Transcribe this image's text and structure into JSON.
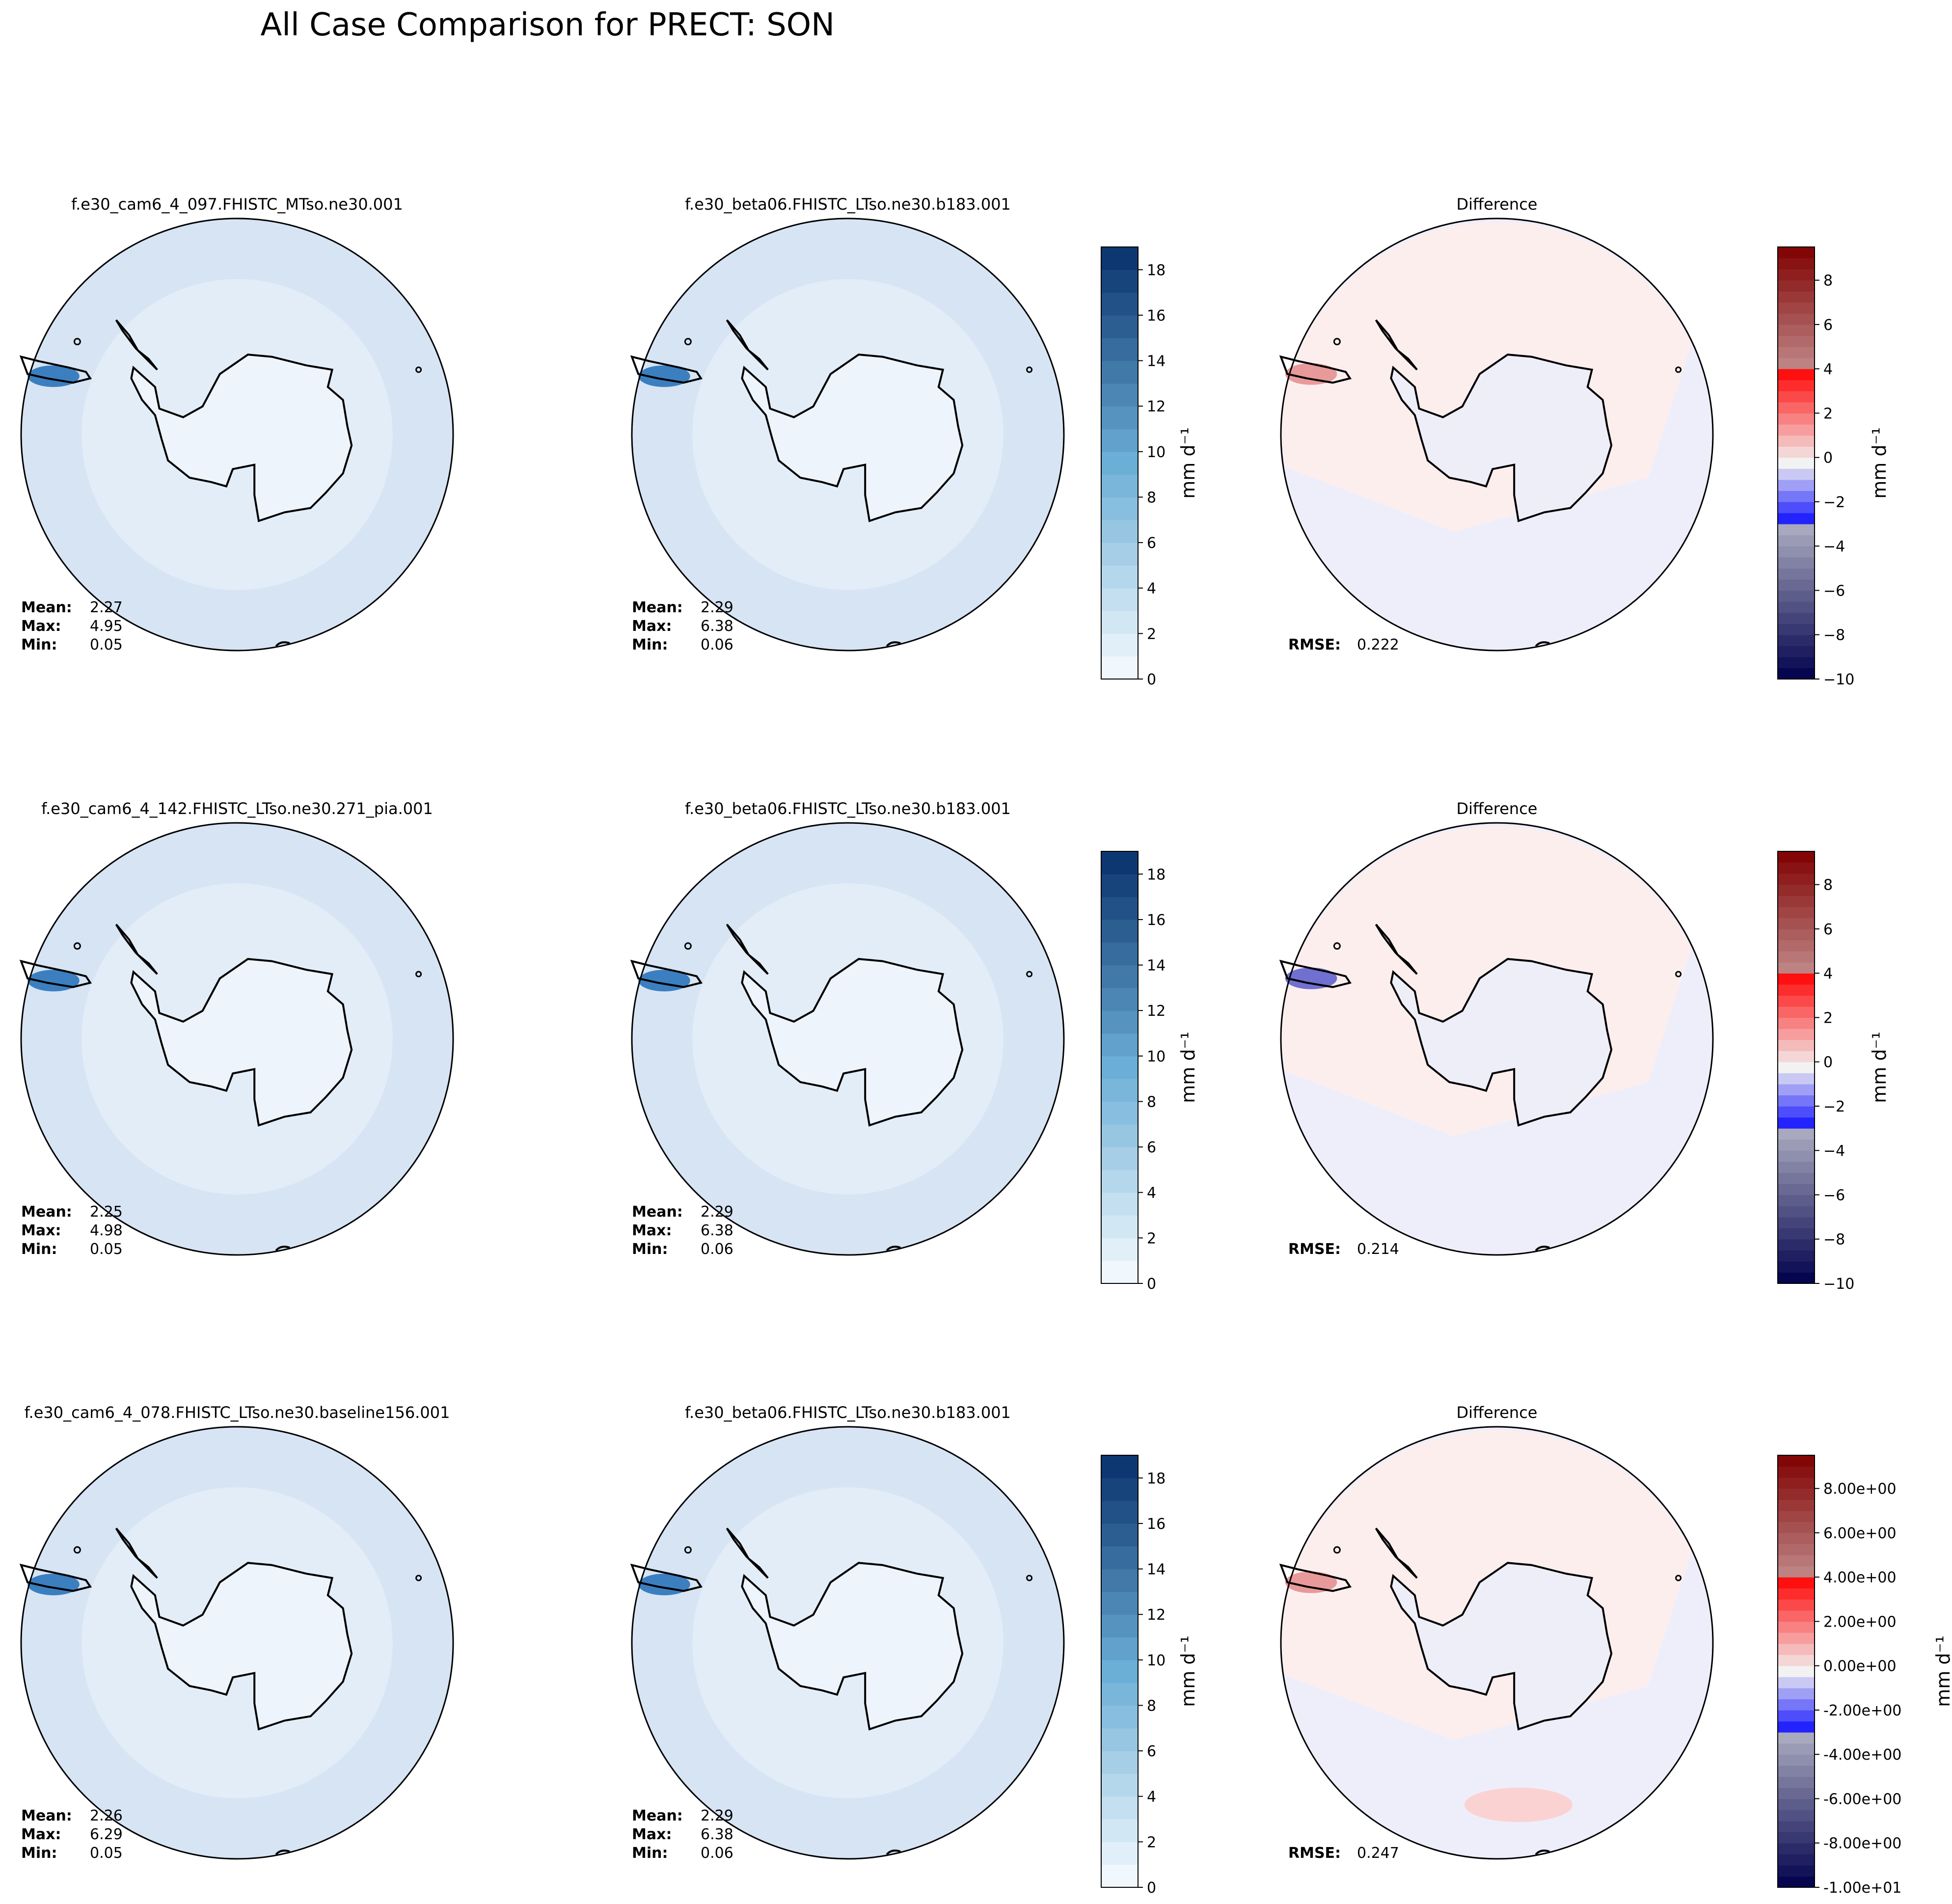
{
  "title": "All Case Comparison for PRECT: SON",
  "chart_data": {
    "type": "heatmap",
    "units_label": "mm d⁻¹",
    "precip_colorbar": {
      "ticks": [
        "0",
        "2",
        "4",
        "6",
        "8",
        "10",
        "12",
        "14",
        "16",
        "18"
      ],
      "range": [
        0,
        19
      ]
    },
    "diff_colorbar_plain": {
      "ticks": [
        "−10",
        "−8",
        "−6",
        "−4",
        "−2",
        "0",
        "2",
        "4",
        "6",
        "8"
      ],
      "range": [
        -10,
        9.5
      ]
    },
    "diff_colorbar_sci": {
      "ticks": [
        "-1.00e+01",
        "-8.00e+00",
        "-6.00e+00",
        "-4.00e+00",
        "-2.00e+00",
        "0.00e+00",
        "2.00e+00",
        "4.00e+00",
        "6.00e+00",
        "8.00e+00"
      ],
      "range": [
        -10,
        9.5
      ]
    },
    "stat_labels": {
      "mean": "Mean",
      "max": "Max",
      "min": "Min",
      "rmse": "RMSE"
    },
    "rows": [
      {
        "test": {
          "title": "f.e30_cam6_4_097.FHISTC_MTso.ne30.001",
          "mean": "2.27",
          "max": "4.95",
          "min": "0.05"
        },
        "baseline": {
          "title": "f.e30_beta06.FHISTC_LTso.ne30.b183.001",
          "mean": "2.29",
          "max": "6.38",
          "min": "0.06"
        },
        "diff": {
          "title": "Difference",
          "rmse": "0.222"
        }
      },
      {
        "test": {
          "title": "f.e30_cam6_4_142.FHISTC_LTso.ne30.271_pia.001",
          "mean": "2.25",
          "max": "4.98",
          "min": "0.05"
        },
        "baseline": {
          "title": "f.e30_beta06.FHISTC_LTso.ne30.b183.001",
          "mean": "2.29",
          "max": "6.38",
          "min": "0.06"
        },
        "diff": {
          "title": "Difference",
          "rmse": "0.214"
        }
      },
      {
        "test": {
          "title": "f.e30_cam6_4_078.FHISTC_LTso.ne30.baseline156.001",
          "mean": "2.26",
          "max": "6.29",
          "min": "0.05"
        },
        "baseline": {
          "title": "f.e30_beta06.FHISTC_LTso.ne30.b183.001",
          "mean": "2.29",
          "max": "6.38",
          "min": "0.06"
        },
        "diff": {
          "title": "Difference",
          "rmse": "0.247"
        }
      }
    ],
    "colors": {
      "precip_low": "#f7fbff",
      "precip_mid": "#c6dbef",
      "precip_high": "#08306b",
      "diff_neg": "#00004c",
      "diff_zero": "#f2f2f2",
      "diff_pos": "#800000",
      "ocean_precip": "#d6e4f4",
      "ocean_precip_light": "#e3edf8",
      "land_precip": "#eef4fc",
      "ocean_diff_pos": "#fdeeee",
      "ocean_diff_neg": "#eeeefb"
    }
  }
}
